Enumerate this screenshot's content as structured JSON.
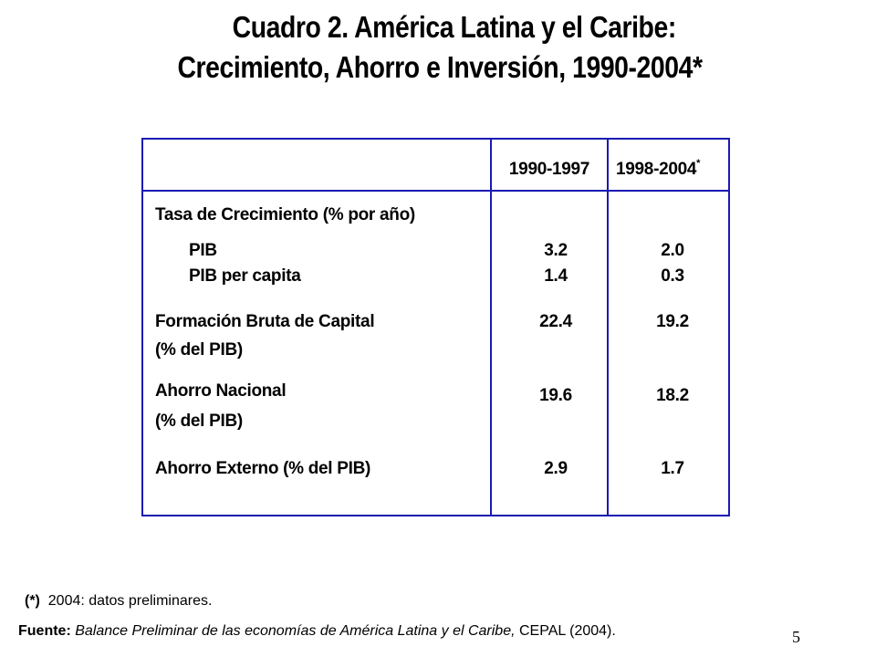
{
  "title": {
    "line1": "Cuadro 2. América Latina y el Caribe:",
    "line2": "Crecimiento, Ahorro  e Inversión, 1990-2004*"
  },
  "table": {
    "columns": [
      "1990-1997",
      "1998-2004"
    ],
    "col2_marker": "*",
    "sections": {
      "growth_header": "Tasa de Crecimiento (% por año)",
      "pib_label": "PIB",
      "pib_values": [
        "3.2",
        "2.0"
      ],
      "pibpc_label": "PIB per capita",
      "pibpc_values": [
        "1.4",
        "0.3"
      ],
      "fbk_label_1": "Formación Bruta de Capital",
      "fbk_label_2": "(% del PIB)",
      "fbk_values": [
        "22.4",
        "19.2"
      ],
      "an_label_1": "Ahorro Nacional",
      "an_label_2": "(% del PIB)",
      "an_values": [
        "19.6",
        "18.2"
      ],
      "ae_label": "Ahorro Externo (% del PIB)",
      "ae_values": [
        "2.9",
        "1.7"
      ]
    }
  },
  "footnote": {
    "marker": "(*)",
    "text": "2004: datos preliminares."
  },
  "source": {
    "label": "Fuente:",
    "italic_text": "Balance Preliminar de las economías de América Latina y el Caribe,",
    "rest": "CEPAL (2004)."
  },
  "page_number": "5",
  "colors": {
    "table_border": "#1a1ab3",
    "text": "#000000"
  }
}
